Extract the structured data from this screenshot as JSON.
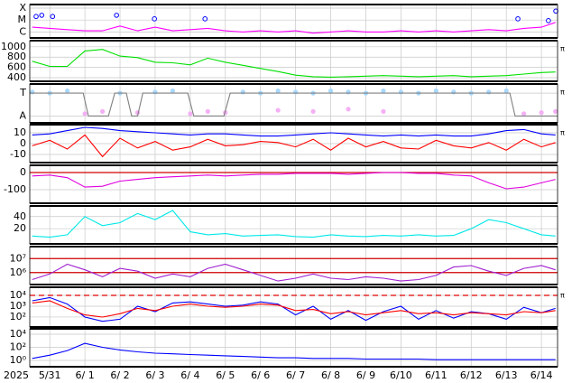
{
  "chart_data": [
    {
      "type": "line",
      "ylim": [
        -6.5,
        -3.7
      ],
      "yticks": [
        {
          "value": -4,
          "label": "X"
        },
        {
          "value": -5,
          "label": "M"
        },
        {
          "value": -6,
          "label": "C"
        }
      ],
      "x": [
        -0.5,
        0,
        0.5,
        1,
        1.5,
        2,
        2.5,
        3,
        3.5,
        4,
        4.5,
        5,
        5.5,
        6,
        6.5,
        7,
        7.5,
        8,
        8.5,
        9,
        9.5,
        10,
        10.5,
        11,
        11.5,
        12,
        12.5,
        13,
        13.5,
        14,
        14.4
      ],
      "series": [
        {
          "color": "#ff00ff",
          "style": "line",
          "values": [
            -5.6,
            -5.7,
            -5.8,
            -5.9,
            -5.9,
            -5.5,
            -5.9,
            -5.6,
            -5.9,
            -5.8,
            -5.7,
            -5.9,
            -6.0,
            -5.9,
            -6.0,
            -5.9,
            -6.1,
            -6.0,
            -5.9,
            -6.0,
            -6.0,
            -5.9,
            -6.0,
            -5.9,
            -6.0,
            -5.9,
            -5.8,
            -5.9,
            -5.7,
            -5.6,
            -5.2
          ]
        },
        {
          "color": "#0000ff",
          "style": "circles",
          "x": [
            -0.39,
            -0.23,
            0.08,
            1.9,
            2.98,
            4.42,
            13.33,
            14.2,
            14.41
          ],
          "values": [
            -4.7,
            -4.6,
            -4.7,
            -4.6,
            -4.9,
            -4.9,
            -4.9,
            -5.05,
            -4.25
          ]
        }
      ]
    },
    {
      "type": "line",
      "ylim": [
        330,
        1120
      ],
      "yticks": [
        1000,
        800,
        600,
        400
      ],
      "side_label": "π",
      "x": [
        -0.5,
        0,
        0.5,
        1,
        1.5,
        2,
        2.5,
        3,
        3.5,
        4,
        4.5,
        5,
        5.5,
        6,
        6.5,
        7,
        7.5,
        8,
        8.5,
        9,
        9.5,
        10,
        10.5,
        11,
        11.5,
        12,
        12.5,
        13,
        13.5,
        14,
        14.4
      ],
      "series": [
        {
          "color": "#00e000",
          "style": "line",
          "values": [
            720,
            620,
            620,
            920,
            950,
            820,
            790,
            700,
            690,
            650,
            780,
            700,
            640,
            580,
            520,
            450,
            420,
            410,
            420,
            430,
            440,
            430,
            420,
            430,
            440,
            420,
            430,
            440,
            470,
            500,
            510
          ]
        }
      ]
    },
    {
      "type": "line",
      "ylim": [
        -0.3,
        1.4
      ],
      "yticks": [
        {
          "value": 1,
          "label": "T"
        },
        {
          "value": 0,
          "label": "A"
        }
      ],
      "side_label": "π",
      "x": [
        -0.5,
        0,
        0.5,
        1,
        1.5,
        2,
        2.5,
        3,
        3.5,
        4,
        4.5,
        5,
        5.5,
        6,
        6.5,
        7,
        7.5,
        8,
        8.5,
        9,
        9.5,
        10,
        10.5,
        11,
        11.5,
        12,
        12.5,
        13,
        13.5,
        14,
        14.4
      ],
      "series": [
        {
          "color": "#a8d8ff",
          "style": "dots",
          "values": [
            1.05,
            1.0,
            1.1,
            null,
            null,
            1.0,
            null,
            1.05,
            1.1,
            null,
            null,
            null,
            1.05,
            1.0,
            1.1,
            1.05,
            1.0,
            1.1,
            1.05,
            1.0,
            1.1,
            1.05,
            1.0,
            1.1,
            1.05,
            1.0,
            1.05,
            1.1,
            null,
            null,
            null
          ]
        },
        {
          "color": "#f4b0f4",
          "style": "dots",
          "values": [
            null,
            null,
            null,
            0.1,
            0.2,
            null,
            0.15,
            null,
            null,
            0.1,
            0.2,
            0.15,
            null,
            null,
            0.25,
            null,
            0.2,
            null,
            0.3,
            null,
            0.2,
            null,
            null,
            null,
            null,
            null,
            null,
            null,
            0.1,
            0.15,
            0.2
          ]
        },
        {
          "color": "#808080",
          "style": "line",
          "x": [
            -0.57,
            0.95,
            1.1,
            1.67,
            1.85,
            2.18,
            2.33,
            2.5,
            2.65,
            3.93,
            4.1,
            4.96,
            5.14,
            13.1,
            13.25,
            14.46
          ],
          "values": [
            1,
            1,
            0,
            0,
            1,
            1,
            0,
            0,
            1,
            1,
            0,
            0,
            1,
            1,
            0,
            0
          ]
        }
      ]
    },
    {
      "type": "line",
      "ylim": [
        -17.5,
        17.5
      ],
      "yticks": [
        10,
        0,
        -10
      ],
      "side_label": "π",
      "x": [
        -0.5,
        0,
        0.5,
        1,
        1.5,
        2,
        2.5,
        3,
        3.5,
        4,
        4.5,
        5,
        5.5,
        6,
        6.5,
        7,
        7.5,
        8,
        8.5,
        9,
        9.5,
        10,
        10.5,
        11,
        11.5,
        12,
        12.5,
        13,
        13.5,
        14,
        14.4
      ],
      "series": [
        {
          "color": "#0000ff",
          "style": "line",
          "values": [
            8,
            9,
            12,
            15,
            14,
            12,
            11,
            10,
            9,
            8,
            9,
            9,
            8,
            7,
            7,
            8,
            9,
            10,
            9,
            8,
            7,
            8,
            7,
            8,
            7,
            7,
            9,
            12,
            13,
            9,
            8
          ]
        },
        {
          "color": "#ff0000",
          "style": "line",
          "values": [
            -2,
            3,
            -5,
            8,
            -12,
            5,
            -4,
            2,
            -6,
            -3,
            4,
            -2,
            -1,
            2,
            1,
            -3,
            4,
            -6,
            5,
            -3,
            2,
            -4,
            -5,
            3,
            -2,
            -4,
            1,
            -6,
            4,
            -3,
            1
          ]
        }
      ]
    },
    {
      "type": "line",
      "ylim": [
        -179,
        42
      ],
      "yticks": [
        0,
        -100
      ],
      "ref_lines": [
        {
          "value": 0,
          "color": "#d00000",
          "dashed": false
        }
      ],
      "x": [
        -0.5,
        0,
        0.5,
        1,
        1.5,
        2,
        2.5,
        3,
        3.5,
        4,
        4.5,
        5,
        5.5,
        6,
        6.5,
        7,
        7.5,
        8,
        8.5,
        9,
        9.5,
        10,
        10.5,
        11,
        11.5,
        12,
        12.5,
        13,
        13.5,
        14,
        14.4
      ],
      "series": [
        {
          "color": "#e000e0",
          "style": "line",
          "values": [
            -20,
            -15,
            -30,
            -85,
            -80,
            -50,
            -40,
            -30,
            -25,
            -20,
            -15,
            -20,
            -15,
            -10,
            -10,
            -5,
            -5,
            -5,
            -10,
            -5,
            0,
            0,
            -5,
            -5,
            -15,
            -20,
            -60,
            -95,
            -85,
            -60,
            -40
          ]
        }
      ]
    },
    {
      "type": "line",
      "ylim": [
        -5,
        57.5
      ],
      "yticks": [
        40,
        20
      ],
      "x": [
        -0.5,
        0,
        0.5,
        1,
        1.5,
        2,
        2.5,
        3,
        3.5,
        4,
        4.5,
        5,
        5.5,
        6,
        6.5,
        7,
        7.5,
        8,
        8.5,
        9,
        9.5,
        10,
        10.5,
        11,
        11.5,
        12,
        12.5,
        13,
        13.5,
        14,
        14.4
      ],
      "series": [
        {
          "color": "#00e8e8",
          "style": "line",
          "values": [
            8,
            6,
            10,
            40,
            25,
            30,
            45,
            35,
            50,
            15,
            10,
            12,
            8,
            9,
            10,
            7,
            6,
            10,
            8,
            7,
            9,
            8,
            10,
            8,
            9,
            20,
            35,
            30,
            20,
            10,
            8
          ]
        }
      ]
    },
    {
      "type": "line",
      "log": true,
      "ylim": [
        140000,
        72000000
      ],
      "yticks": [
        {
          "value": 10000000,
          "label": "10⁷"
        },
        {
          "value": 1000000,
          "label": "10⁶"
        }
      ],
      "ref_lines": [
        {
          "value": 10000000,
          "color": "#d00000",
          "dashed": false
        },
        {
          "value": 1000000,
          "color": "#d00000",
          "dashed": false
        }
      ],
      "x": [
        -0.5,
        0,
        0.5,
        1,
        1.5,
        2,
        2.5,
        3,
        3.5,
        4,
        4.5,
        5,
        5.5,
        6,
        6.5,
        7,
        7.5,
        8,
        8.5,
        9,
        9.5,
        10,
        10.5,
        11,
        11.5,
        12,
        12.5,
        13,
        13.5,
        14,
        14.4
      ],
      "series": [
        {
          "color": "#a020d0",
          "style": "line",
          "values": [
            316000,
            794000,
            3980000,
            1580000,
            501000,
            2000000,
            1260000,
            398000,
            794000,
            501000,
            2000000,
            3980000,
            1580000,
            631000,
            251000,
            398000,
            794000,
            398000,
            316000,
            501000,
            398000,
            251000,
            316000,
            631000,
            2510000,
            3160000,
            1260000,
            631000,
            2000000,
            3160000,
            1580000
          ]
        }
      ]
    },
    {
      "type": "line",
      "log": true,
      "ylim": [
        12,
        56000
      ],
      "side_label": "π",
      "yticks": [
        {
          "value": 10000,
          "label": "10⁴"
        },
        {
          "value": 1000,
          "label": "10³"
        },
        {
          "value": 100,
          "label": "10²"
        }
      ],
      "ref_lines": [
        {
          "value": 10000,
          "color": "#e00000",
          "dashed": true
        }
      ],
      "x": [
        -0.5,
        0,
        0.5,
        1,
        1.5,
        2,
        2.5,
        3,
        3.5,
        4,
        4.5,
        5,
        5.5,
        6,
        6.5,
        7,
        7.5,
        8,
        8.5,
        9,
        9.5,
        10,
        10.5,
        11,
        11.5,
        12,
        12.5,
        13,
        13.5,
        14,
        14.4
      ],
      "series": [
        {
          "color": "#0000ff",
          "style": "line",
          "values": [
            3160,
            6310,
            1580,
            100,
            40,
            63,
            1000,
            316,
            2000,
            2510,
            1580,
            1000,
            1260,
            2510,
            1580,
            158,
            1000,
            63,
            398,
            50,
            316,
            1000,
            63,
            398,
            79,
            316,
            200,
            63,
            794,
            251,
            631
          ]
        },
        {
          "color": "#ff0000",
          "style": "line",
          "values": [
            2000,
            3160,
            631,
            158,
            100,
            200,
            631,
            398,
            1000,
            1580,
            1000,
            794,
            1000,
            1580,
            1260,
            398,
            501,
            200,
            316,
            158,
            251,
            398,
            200,
            251,
            158,
            251,
            200,
            158,
            316,
            251,
            398
          ]
        }
      ]
    },
    {
      "type": "line",
      "log": true,
      "ylim": [
        0.107,
        67000
      ],
      "yticks": [
        {
          "value": 10000,
          "label": "10⁴"
        },
        {
          "value": 100,
          "label": "10²"
        },
        {
          "value": 1,
          "label": "10⁰"
        }
      ],
      "year_label": "2025",
      "xlim": [
        -0.57,
        14.46
      ],
      "xticks": [
        {
          "value": 0,
          "label": "5/31"
        },
        {
          "value": 1,
          "label": "6/ 1"
        },
        {
          "value": 2,
          "label": "6/ 2"
        },
        {
          "value": 3,
          "label": "6/ 3"
        },
        {
          "value": 4,
          "label": "6/ 4"
        },
        {
          "value": 5,
          "label": "6/ 5"
        },
        {
          "value": 6,
          "label": "6/ 6"
        },
        {
          "value": 7,
          "label": "6/ 7"
        },
        {
          "value": 8,
          "label": "6/ 8"
        },
        {
          "value": 9,
          "label": "6/ 9"
        },
        {
          "value": 10,
          "label": "6/10"
        },
        {
          "value": 11,
          "label": "6/11"
        },
        {
          "value": 12,
          "label": "6/12"
        },
        {
          "value": 13,
          "label": "6/13"
        },
        {
          "value": 14,
          "label": "6/14"
        }
      ],
      "x": [
        -0.5,
        0,
        0.5,
        1,
        1.5,
        2,
        2.5,
        3,
        3.5,
        4,
        4.5,
        5,
        5.5,
        6,
        6.5,
        7,
        7.5,
        8,
        8.5,
        9,
        9.5,
        10,
        10.5,
        11,
        11.5,
        12,
        12.5,
        13,
        13.5,
        14,
        14.4
      ],
      "series": [
        {
          "color": "#0000ff",
          "style": "line",
          "values": [
            2,
            6.3,
            31.6,
            398,
            100,
            39.8,
            20,
            12.6,
            10,
            7.9,
            6.3,
            5,
            4,
            3.2,
            2.5,
            2.5,
            2,
            2,
            2,
            1.6,
            1.6,
            1.6,
            1.6,
            1.26,
            1.26,
            1.26,
            1.26,
            1.26,
            1.26,
            1.26,
            1.26
          ]
        }
      ]
    }
  ]
}
